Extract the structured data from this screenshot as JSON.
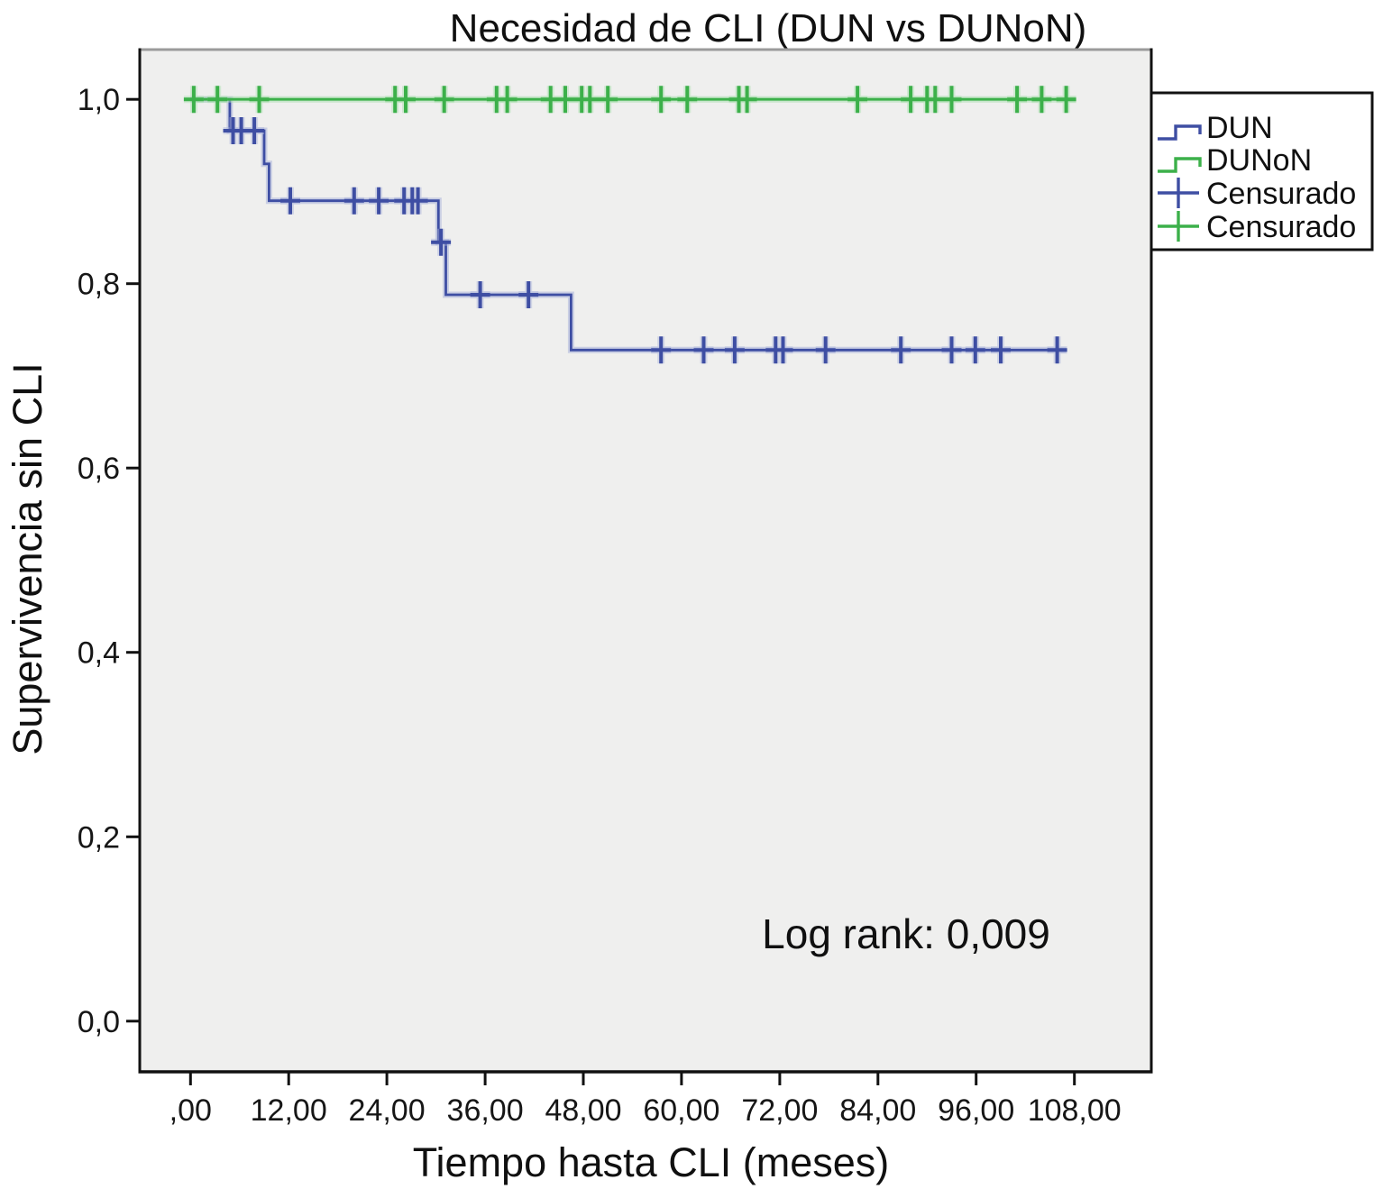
{
  "figure": {
    "title": "Necesidad de CLI (DUN vs DUNoN)",
    "x_axis_label": "Tiempo hasta CLI (meses)",
    "y_axis_label": "Supervivencia sin CLI",
    "annotation": "Log rank: 0,009"
  },
  "legend": {
    "position": "top-right",
    "items": [
      {
        "label": "DUN",
        "color": "#3e4ea3",
        "glyph": "step-line"
      },
      {
        "label": "DUNoN",
        "color": "#3cb04a",
        "glyph": "step-line"
      },
      {
        "label": "Censurado",
        "color": "#3e4ea3",
        "glyph": "plus"
      },
      {
        "label": "Censurado",
        "color": "#3cb04a",
        "glyph": "plus"
      }
    ]
  },
  "chart_data": {
    "type": "line",
    "subtype": "kaplan-meier-step",
    "title": "Necesidad de CLI (DUN vs DUNoN)",
    "xlabel": "Tiempo hasta CLI (meses)",
    "ylabel": "Supervivencia sin CLI",
    "annotation": {
      "text": "Log rank: 0,009"
    },
    "grid": false,
    "background": "#efefee",
    "legend_position": "top-right",
    "xlim": [
      -6.2,
      117.4
    ],
    "ylim": [
      -0.055,
      1.054
    ],
    "x_ticks": {
      "values": [
        0,
        12,
        24,
        36,
        48,
        60,
        72,
        84,
        96,
        108
      ],
      "labels": [
        ",00",
        "12,00",
        "24,00",
        "36,00",
        "48,00",
        "60,00",
        "72,00",
        "84,00",
        "96,00",
        "108,00"
      ]
    },
    "y_ticks": {
      "values": [
        0.0,
        0.2,
        0.4,
        0.6,
        0.8,
        1.0
      ],
      "labels": [
        "0,0",
        "0,2",
        "0,4",
        "0,6",
        "0,8",
        "1,0"
      ]
    },
    "series": [
      {
        "name": "DUN",
        "color": "#3e4ea3",
        "halo": "#aab3da",
        "end_time": 107,
        "points": [
          [
            0,
            1.0
          ],
          [
            4.8,
            0.966
          ],
          [
            9.0,
            0.93
          ],
          [
            9.6,
            0.89
          ],
          [
            30.3,
            0.845
          ],
          [
            31.2,
            0.788
          ],
          [
            46.5,
            0.728
          ]
        ],
        "censor_marks": [
          [
            5.2,
            0.966
          ],
          [
            6.2,
            0.966
          ],
          [
            7.8,
            0.966
          ],
          [
            12.2,
            0.89
          ],
          [
            20.0,
            0.89
          ],
          [
            23.0,
            0.89
          ],
          [
            26.1,
            0.89
          ],
          [
            27.1,
            0.89
          ],
          [
            27.8,
            0.89
          ],
          [
            30.6,
            0.845
          ],
          [
            35.4,
            0.788
          ],
          [
            41.3,
            0.788
          ],
          [
            57.5,
            0.728
          ],
          [
            62.7,
            0.728
          ],
          [
            66.5,
            0.728
          ],
          [
            71.5,
            0.728
          ],
          [
            72.4,
            0.728
          ],
          [
            77.6,
            0.728
          ],
          [
            86.8,
            0.728
          ],
          [
            93.0,
            0.728
          ],
          [
            95.9,
            0.728
          ],
          [
            99.0,
            0.728
          ],
          [
            105.9,
            0.728
          ]
        ]
      },
      {
        "name": "DUNoN",
        "color": "#3cb04a",
        "halo": "#a8dfae",
        "end_time": 108.2,
        "points": [
          [
            0,
            1.0
          ]
        ],
        "censor_marks": [
          [
            0.4,
            1.0
          ],
          [
            3.3,
            1.0
          ],
          [
            8.4,
            1.0
          ],
          [
            25.0,
            1.0
          ],
          [
            26.3,
            1.0
          ],
          [
            31.0,
            1.0
          ],
          [
            37.4,
            1.0
          ],
          [
            38.7,
            1.0
          ],
          [
            44.0,
            1.0
          ],
          [
            45.8,
            1.0
          ],
          [
            47.8,
            1.0
          ],
          [
            48.8,
            1.0
          ],
          [
            51.0,
            1.0
          ],
          [
            57.5,
            1.0
          ],
          [
            60.7,
            1.0
          ],
          [
            67.0,
            1.0
          ],
          [
            68.0,
            1.0
          ],
          [
            81.5,
            1.0
          ],
          [
            88.0,
            1.0
          ],
          [
            90.0,
            1.0
          ],
          [
            91.0,
            1.0
          ],
          [
            93.0,
            1.0
          ],
          [
            101.0,
            1.0
          ],
          [
            104.0,
            1.0
          ],
          [
            107.0,
            1.0
          ]
        ]
      }
    ]
  }
}
